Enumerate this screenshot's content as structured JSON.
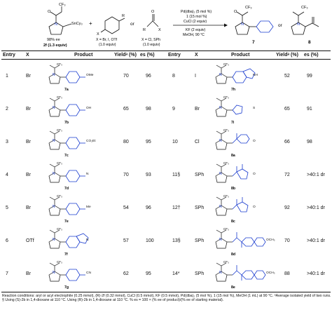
{
  "scheme": {
    "sub_stannane_cf3": "CF₃",
    "sub_stannane_sn": "SnCy₃",
    "sub_stannane_ee": "98% ee",
    "sub_stannane_label": "2f (1.3 equiv)",
    "plus": "+",
    "or": "or",
    "sub_aryl_r": "R",
    "sub_aryl_x": "X",
    "sub_aryl_note1": "X = Br, I, OTf",
    "sub_aryl_note2": "(1.0 equiv)",
    "sub_acyl_r": "R",
    "sub_acyl_x": "X",
    "sub_acyl_note1": "X = Cl, SPh",
    "sub_acyl_note2": "(1.0 equiv)",
    "cond_line1": "Pd(dba)₂ (5 mol %)",
    "cond_line2": "1 (15 mol %)",
    "cond_line3": "CuCl (2 equiv)",
    "cond_line4": "KF (2 equiv)",
    "cond_line5": "MeOH, 90 °C",
    "prod_7_label": "7",
    "prod_8_label": "8",
    "prod_cf3": "CF₃"
  },
  "headers": {
    "entry": "Entry",
    "x": "X",
    "product": "Product",
    "yield": "Yieldᵃ (%)",
    "es": "es (%)"
  },
  "left_rows": [
    {
      "entry": "1",
      "x": "Br",
      "label": "7a",
      "sub": "OMe",
      "yield": "70",
      "es": "96"
    },
    {
      "entry": "2",
      "x": "Br",
      "label": "7b",
      "sub": "OH",
      "yield": "65",
      "es": "98"
    },
    {
      "entry": "3",
      "x": "Br",
      "label": "7c",
      "sub": "CO₂Et",
      "yield": "80",
      "es": "95"
    },
    {
      "entry": "4",
      "x": "Br",
      "label": "7d",
      "sub": "N",
      "yield": "70",
      "es": "93"
    },
    {
      "entry": "5",
      "x": "Br",
      "label": "7e",
      "sub": "Me",
      "yield": "54",
      "es": "96"
    },
    {
      "entry": "6",
      "x": "OTf",
      "label": "7f",
      "sub": "N",
      "yield": "57",
      "es": "100"
    },
    {
      "entry": "7",
      "x": "Br",
      "label": "7g",
      "sub": "CN",
      "yield": "62",
      "es": "95"
    }
  ],
  "right_rows": [
    {
      "entry": "8",
      "x": "I",
      "label": "7h",
      "sub": "NH",
      "yield": "52",
      "es": "99"
    },
    {
      "entry": "9",
      "x": "Br",
      "label": "7i",
      "sub": "S",
      "yield": "65",
      "es": "91"
    },
    {
      "entry": "10",
      "x": "Cl",
      "label": "8a",
      "sub": "O",
      "yield": "66",
      "es": "98"
    },
    {
      "entry": "11§",
      "x": "SPh",
      "label": "8b",
      "sub": "O",
      "yield": "72",
      "es": ">40:1 dr"
    },
    {
      "entry": "12†",
      "x": "SPh",
      "label": "8c",
      "sub": "O",
      "yield": "92",
      "es": ">40:1 dr"
    },
    {
      "entry": "13§",
      "x": "SPh",
      "label": "8d",
      "sub": "OCH₃",
      "yield": "70",
      "es": ">40:1 dr"
    },
    {
      "entry": "14*",
      "x": "SPh",
      "label": "8e",
      "sub": "OCH₃",
      "yield": "88",
      "es": ">40:1 dr"
    }
  ],
  "sub_labels": {
    "cf3": "CF₃",
    "otbu": "OᵗBu",
    "boc_o": "O",
    "methyl": "CH₃"
  },
  "footnote": "Reaction conditions: aryl or acyl electrophile (0.25 mmol), (R)-2f (0.32 mmol), CuCl (0.5 mmol), KF (0.5 mmol), Pd(dba)₂ (5 mol %), 1 (15 mol %), MeOH (1 mL) at 90 °C. ᵃAverage isolated yield of two runs. § Using (S)-2b in 1,4-dioxane at 110 °C. Using (R)-2b in 1,4-dioxane at 110 °C. % es = 100 × (% ee of product)/(% ee of starting material)."
}
